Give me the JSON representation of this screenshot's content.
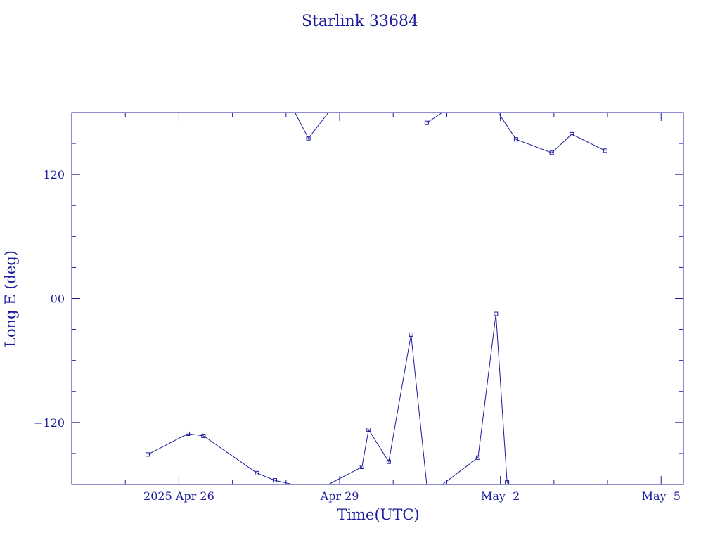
{
  "chart_data": {
    "type": "line",
    "title": "Starlink 33684",
    "xlabel": "Time(UTC)",
    "ylabel": "Long E (deg)",
    "x_tick_labels": [
      "2025 Apr 26",
      "Apr 29",
      "May  2",
      "May  5"
    ],
    "y_tick_labels": [
      "120",
      "00",
      "−120"
    ],
    "y_ticks": [
      120,
      0,
      -120
    ],
    "xlim": [
      "2025-04-24T00:00",
      "2025-05-05T10:00"
    ],
    "ylim": [
      -180,
      180
    ],
    "grid": false,
    "color": "#1c1c9c",
    "segments": [
      [
        [
          "2025-04-25T10:00",
          -151
        ],
        [
          "2025-04-26T04:00",
          -131
        ],
        [
          "2025-04-26T11:00",
          -133
        ],
        [
          "2025-04-27T11:00",
          -169
        ],
        [
          "2025-04-27T19:00",
          -176
        ],
        [
          "2025-04-28T03:00",
          -180
        ]
      ],
      [
        [
          "2025-04-28T04:00",
          180
        ],
        [
          "2025-04-28T10:00",
          155
        ],
        [
          "2025-04-28T19:00",
          180
        ]
      ],
      [
        [
          "2025-04-28T19:00",
          -180
        ],
        [
          "2025-04-29T10:00",
          -163
        ],
        [
          "2025-04-29T13:00",
          -127
        ],
        [
          "2025-04-29T22:00",
          -158
        ],
        [
          "2025-04-30T08:00",
          -35
        ],
        [
          "2025-04-30T15:00",
          -180
        ]
      ],
      [
        [
          "2025-04-30T15:00",
          170
        ],
        [
          "2025-04-30T22:00",
          180
        ]
      ],
      [
        [
          "2025-04-30T22:00",
          -180
        ],
        [
          "2025-05-01T14:00",
          -154
        ],
        [
          "2025-05-01T22:00",
          -15
        ],
        [
          "2025-05-02T03:00",
          -178
        ],
        [
          "2025-05-02T04:00",
          -180
        ]
      ],
      [
        [
          "2025-05-01T23:00",
          180
        ],
        [
          "2025-05-02T07:00",
          154
        ],
        [
          "2025-05-02T23:00",
          141
        ],
        [
          "2025-05-03T08:00",
          159
        ],
        [
          "2025-05-03T23:00",
          143
        ]
      ]
    ]
  }
}
